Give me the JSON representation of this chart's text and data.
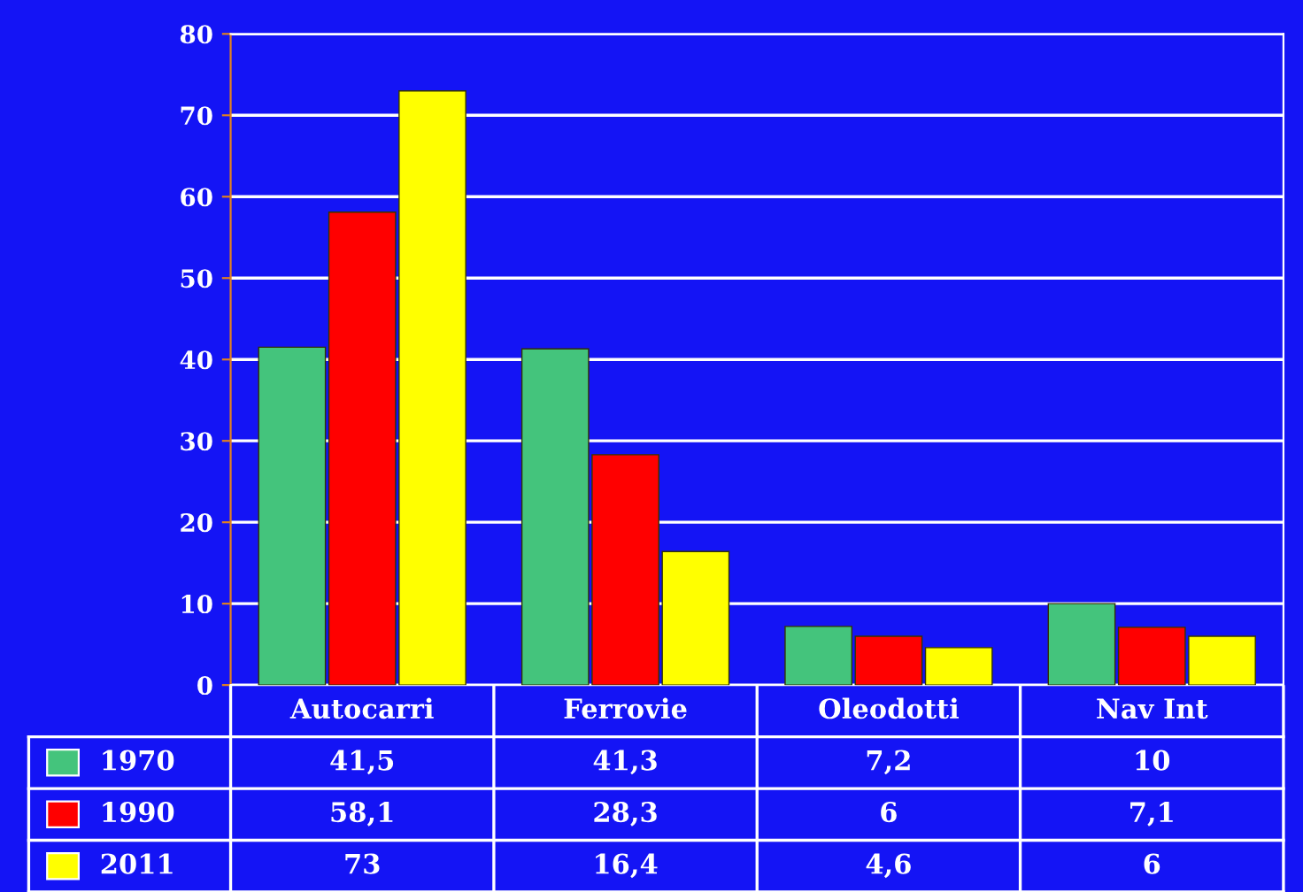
{
  "chart_data": {
    "type": "bar",
    "categories": [
      "Autocarri",
      "Ferrovie",
      "Oleodotti",
      "Nav Int"
    ],
    "series": [
      {
        "name": "1970",
        "color": "#44c47c",
        "values": [
          41.5,
          41.3,
          7.2,
          10
        ],
        "value_labels": [
          "41,5",
          "41,3",
          "7,2",
          "10"
        ]
      },
      {
        "name": "1990",
        "color": "#ff0000",
        "values": [
          58.1,
          28.3,
          6,
          7.1
        ],
        "value_labels": [
          "58,1",
          "28,3",
          "6",
          "7,1"
        ]
      },
      {
        "name": "2011",
        "color": "#ffff00",
        "values": [
          73,
          16.4,
          4.6,
          6
        ],
        "value_labels": [
          "73",
          "16,4",
          "4,6",
          "6"
        ]
      }
    ],
    "ylim": [
      0,
      80
    ],
    "yticks": [
      0,
      10,
      20,
      30,
      40,
      50,
      60,
      70,
      80
    ],
    "grid": "y",
    "legend": "bottom"
  }
}
